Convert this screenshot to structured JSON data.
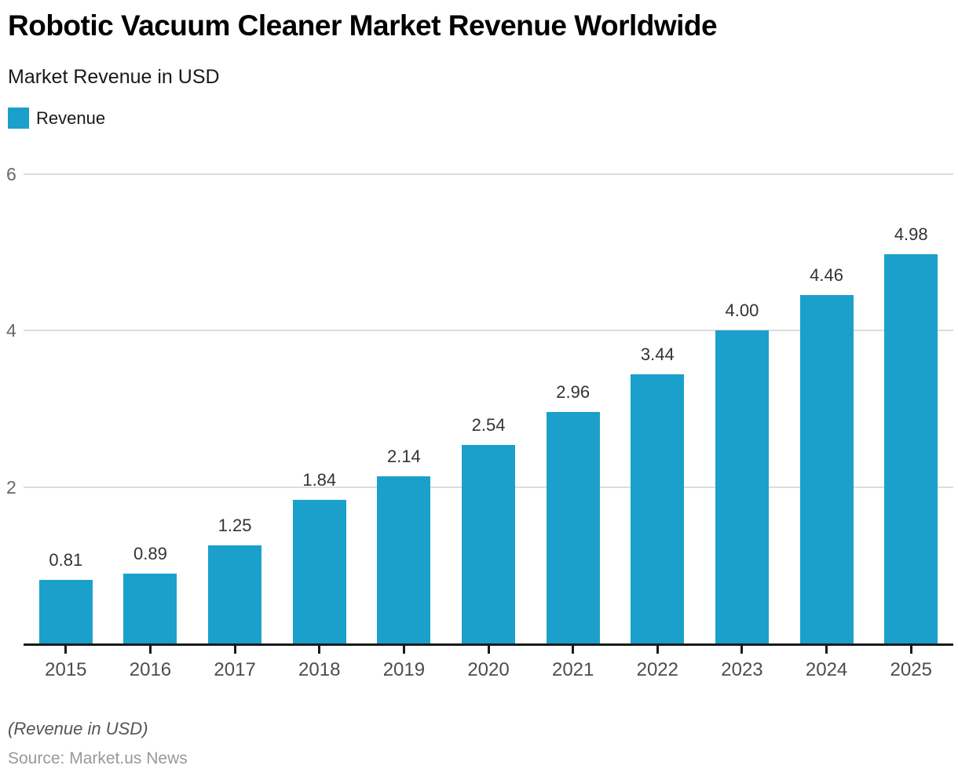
{
  "chart_data": {
    "type": "bar",
    "title": "Robotic Vacuum Cleaner Market Revenue Worldwide",
    "subtitle": "Market Revenue in USD",
    "legend": [
      "Revenue"
    ],
    "legend_position": "top-left",
    "categories": [
      "2015",
      "2016",
      "2017",
      "2018",
      "2019",
      "2020",
      "2021",
      "2022",
      "2023",
      "2024",
      "2025"
    ],
    "values": [
      0.81,
      0.89,
      1.25,
      1.84,
      2.14,
      2.54,
      2.96,
      3.44,
      4.0,
      4.46,
      4.98
    ],
    "value_labels": [
      "0.81",
      "0.89",
      "1.25",
      "1.84",
      "2.14",
      "2.54",
      "2.96",
      "3.44",
      "4.00",
      "4.46",
      "4.98"
    ],
    "xlabel": "",
    "ylabel": "",
    "ylim": [
      0,
      6
    ],
    "yticks": [
      2,
      4,
      6
    ],
    "grid": "horizontal",
    "unit_note": "(Revenue in USD)",
    "source": "Source: Market.us News",
    "bar_color": "#1BA0CB",
    "gridline_color": "#dcdcdc",
    "axis_color": "#1a1a1a"
  }
}
